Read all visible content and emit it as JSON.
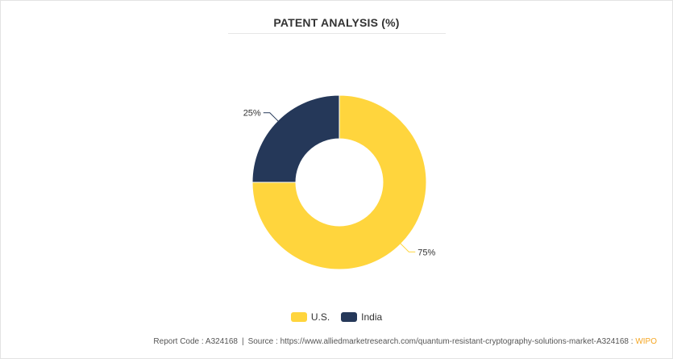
{
  "chart_data": {
    "type": "pie",
    "donut": true,
    "title": "PATENT ANALYSIS (%)",
    "categories": [
      "U.S.",
      "India"
    ],
    "values": [
      75,
      25
    ],
    "labels": [
      "75%",
      "25%"
    ],
    "colors": [
      "#FFD53D",
      "#253859"
    ],
    "legend": "bottom-center"
  },
  "footer": {
    "report_code": "Report Code : A324168",
    "separator": "|",
    "source": "Source : https://www.alliedmarketresearch.com/quantum-resistant-cryptography-solutions-market-A324168 :",
    "wipo": "WIPO"
  }
}
